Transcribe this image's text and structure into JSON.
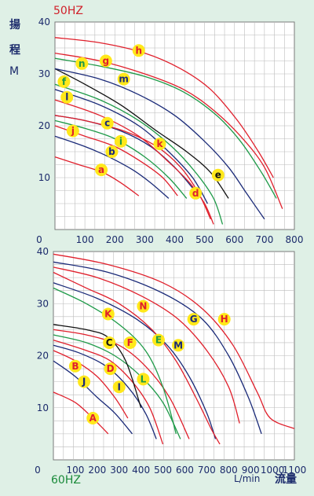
{
  "labels": {
    "yaxis_char1": "揚",
    "yaxis_char2": "程",
    "yaxis_unit": "M",
    "xaxis_unit": "L/min",
    "xaxis_text": "流量"
  },
  "colors": {
    "red": "#e0202c",
    "green": "#1e9a48",
    "navy": "#1a2a78",
    "black": "#111111",
    "marker_fill": "#ffe81a",
    "grid": "#bcbcbc",
    "plot_bg": "#ffffff"
  },
  "chart_data": [
    {
      "type": "line",
      "title": "50HZ",
      "xlim": [
        0,
        800
      ],
      "ylim": [
        0,
        40
      ],
      "x_ticks": [
        "100",
        "200",
        "300",
        "400",
        "500",
        "600",
        "700",
        "800"
      ],
      "y_ticks": [
        "10",
        "20",
        "30",
        "40"
      ],
      "origin_label": "0",
      "series": [
        {
          "name": "a",
          "color": "red",
          "points": [
            [
              0,
              14
            ],
            [
              80,
              12.5
            ],
            [
              160,
              11
            ],
            [
              220,
              9
            ],
            [
              280,
              6.5
            ]
          ],
          "label_at": [
            155,
            11.5
          ]
        },
        {
          "name": "b",
          "color": "navy",
          "points": [
            [
              0,
              18
            ],
            [
              100,
              16
            ],
            [
              180,
              14
            ],
            [
              260,
              11.5
            ],
            [
              320,
              9
            ],
            [
              380,
              6
            ]
          ],
          "label_at": [
            190,
            15
          ]
        },
        {
          "name": "j",
          "color": "red",
          "points": [
            [
              0,
              20
            ],
            [
              100,
              18
            ],
            [
              200,
              16
            ],
            [
              290,
              13
            ],
            [
              360,
              10
            ],
            [
              410,
              6.5
            ]
          ],
          "label_at": [
            60,
            19
          ]
        },
        {
          "name": "i",
          "color": "green",
          "points": [
            [
              0,
              21
            ],
            [
              100,
              19.5
            ],
            [
              200,
              17.5
            ],
            [
              300,
              14
            ],
            [
              380,
              10
            ],
            [
              440,
              6
            ]
          ],
          "label_at": [
            220,
            17
          ]
        },
        {
          "name": "c",
          "color": "navy",
          "points": [
            [
              0,
              22
            ],
            [
              100,
              21
            ],
            [
              220,
              19
            ],
            [
              320,
              16
            ],
            [
              400,
              12
            ],
            [
              460,
              8
            ]
          ],
          "label_at": [
            175,
            20.5
          ]
        },
        {
          "name": "k",
          "color": "red",
          "points": [
            [
              0,
              22
            ],
            [
              100,
              21
            ],
            [
              230,
              19
            ],
            [
              340,
              16
            ],
            [
              420,
              12
            ],
            [
              480,
              7
            ],
            [
              520,
              2
            ]
          ],
          "label_at": [
            350,
            16.5
          ]
        },
        {
          "name": "d",
          "color": "red",
          "points": [
            [
              0,
              25
            ],
            [
              150,
              22
            ],
            [
              280,
              18
            ],
            [
              380,
              13
            ],
            [
              450,
              9
            ],
            [
              500,
              5
            ],
            [
              530,
              1
            ]
          ],
          "label_at": [
            470,
            7
          ]
        },
        {
          "name": "l",
          "color": "navy",
          "points": [
            [
              0,
              27
            ],
            [
              150,
              24
            ],
            [
              280,
              20
            ],
            [
              380,
              15
            ],
            [
              460,
              10
            ],
            [
              510,
              5
            ]
          ],
          "label_at": [
            40,
            25.5
          ]
        },
        {
          "name": "f",
          "color": "green",
          "points": [
            [
              0,
              28
            ],
            [
              150,
              25
            ],
            [
              280,
              21
            ],
            [
              390,
              16
            ],
            [
              470,
              11
            ],
            [
              530,
              6
            ],
            [
              560,
              1
            ]
          ],
          "label_at": [
            30,
            28.5
          ]
        },
        {
          "name": "e",
          "color": "black",
          "points": [
            [
              0,
              31
            ],
            [
              100,
              28
            ],
            [
              220,
              24
            ],
            [
              340,
              19
            ],
            [
              440,
              15
            ],
            [
              520,
              11
            ],
            [
              580,
              6
            ]
          ],
          "label_at": [
            545,
            10.5
          ]
        },
        {
          "name": "m",
          "color": "navy",
          "points": [
            [
              0,
              31
            ],
            [
              150,
              29
            ],
            [
              280,
              26
            ],
            [
              400,
              22
            ],
            [
              500,
              17
            ],
            [
              580,
              12
            ],
            [
              640,
              7
            ],
            [
              700,
              2
            ]
          ],
          "label_at": [
            230,
            29
          ]
        },
        {
          "name": "n",
          "color": "green",
          "points": [
            [
              0,
              33
            ],
            [
              150,
              31.5
            ],
            [
              300,
              29.5
            ],
            [
              430,
              26.5
            ],
            [
              540,
              22
            ],
            [
              620,
              17
            ],
            [
              690,
              11
            ],
            [
              740,
              6
            ]
          ],
          "label_at": [
            90,
            32
          ]
        },
        {
          "name": "g",
          "color": "red",
          "points": [
            [
              0,
              34
            ],
            [
              150,
              32.5
            ],
            [
              300,
              30
            ],
            [
              430,
              27
            ],
            [
              530,
              23
            ],
            [
              620,
              18
            ],
            [
              700,
              12
            ],
            [
              760,
              4
            ]
          ],
          "label_at": [
            170,
            32.5
          ]
        },
        {
          "name": "h",
          "color": "red",
          "points": [
            [
              0,
              37
            ],
            [
              150,
              36
            ],
            [
              300,
              34
            ],
            [
              420,
              31
            ],
            [
              520,
              27
            ],
            [
              610,
              21
            ],
            [
              680,
              15
            ],
            [
              730,
              10
            ]
          ],
          "label_at": [
            280,
            34.5
          ]
        }
      ]
    },
    {
      "type": "line",
      "title": "60HZ",
      "xlim": [
        0,
        1100
      ],
      "ylim": [
        0,
        40
      ],
      "x_ticks": [
        "100",
        "200",
        "300",
        "400",
        "500",
        "600",
        "700",
        "800",
        "900",
        "1000",
        "1100"
      ],
      "y_ticks": [
        "10",
        "20",
        "30",
        "40"
      ],
      "origin_label": "0",
      "series": [
        {
          "name": "A",
          "color": "red",
          "points": [
            [
              0,
              13
            ],
            [
              100,
              11
            ],
            [
              180,
              8
            ],
            [
              250,
              5
            ]
          ],
          "label_at": [
            180,
            8
          ]
        },
        {
          "name": "J",
          "color": "navy",
          "points": [
            [
              0,
              19
            ],
            [
              100,
              16
            ],
            [
              200,
              12
            ],
            [
              280,
              9
            ],
            [
              360,
              5
            ]
          ],
          "label_at": [
            140,
            15
          ]
        },
        {
          "name": "B",
          "color": "red",
          "points": [
            [
              0,
              21
            ],
            [
              100,
              19
            ],
            [
              200,
              16
            ],
            [
              280,
              12
            ],
            [
              340,
              8
            ]
          ],
          "label_at": [
            100,
            18
          ]
        },
        {
          "name": "I",
          "color": "navy",
          "points": [
            [
              0,
              22
            ],
            [
              120,
              20.5
            ],
            [
              240,
              18
            ],
            [
              340,
              14
            ],
            [
              420,
              9
            ],
            [
              470,
              4
            ]
          ],
          "label_at": [
            300,
            14
          ]
        },
        {
          "name": "D",
          "color": "red",
          "points": [
            [
              0,
              23
            ],
            [
              150,
              21
            ],
            [
              260,
              19
            ],
            [
              360,
              15
            ],
            [
              440,
              10
            ],
            [
              500,
              3
            ]
          ],
          "label_at": [
            260,
            17.5
          ]
        },
        {
          "name": "L",
          "color": "green",
          "points": [
            [
              0,
              24
            ],
            [
              150,
              22.5
            ],
            [
              280,
              20
            ],
            [
              400,
              16
            ],
            [
              500,
              11
            ],
            [
              580,
              4
            ]
          ],
          "label_at": [
            410,
            15.5
          ]
        },
        {
          "name": "C",
          "color": "black",
          "points": [
            [
              0,
              26
            ],
            [
              150,
              25
            ],
            [
              250,
              23.5
            ],
            [
              330,
              19
            ],
            [
              400,
              10
            ]
          ],
          "label_at": [
            255,
            22.5
          ]
        },
        {
          "name": "F",
          "color": "red",
          "points": [
            [
              0,
              25
            ],
            [
              150,
              24
            ],
            [
              300,
              22
            ],
            [
              420,
              18
            ],
            [
              530,
              12
            ],
            [
              620,
              4
            ]
          ],
          "label_at": [
            350,
            22.5
          ]
        },
        {
          "name": "E",
          "color": "green",
          "points": [
            [
              0,
              33
            ],
            [
              150,
              30
            ],
            [
              300,
              26
            ],
            [
              420,
              21
            ],
            [
              500,
              14
            ],
            [
              560,
              5
            ]
          ],
          "label_at": [
            480,
            23
          ]
        },
        {
          "name": "M",
          "color": "navy",
          "points": [
            [
              0,
              34
            ],
            [
              200,
              31
            ],
            [
              380,
              27
            ],
            [
              520,
              22
            ],
            [
              620,
              16
            ],
            [
              700,
              9
            ],
            [
              740,
              4
            ]
          ],
          "label_at": [
            570,
            22
          ]
        },
        {
          "name": "K",
          "color": "red",
          "points": [
            [
              0,
              36
            ],
            [
              150,
              33
            ],
            [
              300,
              30
            ],
            [
              450,
              25
            ],
            [
              560,
              19
            ],
            [
              650,
              12
            ],
            [
              720,
              6
            ],
            [
              760,
              3
            ]
          ],
          "label_at": [
            250,
            28
          ]
        },
        {
          "name": "N",
          "color": "red",
          "points": [
            [
              0,
              37
            ],
            [
              200,
              35
            ],
            [
              400,
              31.5
            ],
            [
              570,
              27
            ],
            [
              700,
              21
            ],
            [
              800,
              14
            ],
            [
              850,
              7
            ]
          ],
          "label_at": [
            410,
            29.5
          ]
        },
        {
          "name": "G",
          "color": "navy",
          "points": [
            [
              0,
              38
            ],
            [
              250,
              36
            ],
            [
              500,
              32
            ],
            [
              680,
              27
            ],
            [
              800,
              20
            ],
            [
              890,
              12
            ],
            [
              950,
              5
            ]
          ],
          "label_at": [
            640,
            27
          ]
        },
        {
          "name": "H",
          "color": "red",
          "points": [
            [
              0,
              39.5
            ],
            [
              250,
              37.5
            ],
            [
              500,
              34
            ],
            [
              680,
              29
            ],
            [
              820,
              22
            ],
            [
              930,
              13
            ],
            [
              990,
              8
            ],
            [
              1100,
              6
            ]
          ],
          "label_at": [
            780,
            27
          ]
        }
      ]
    }
  ]
}
